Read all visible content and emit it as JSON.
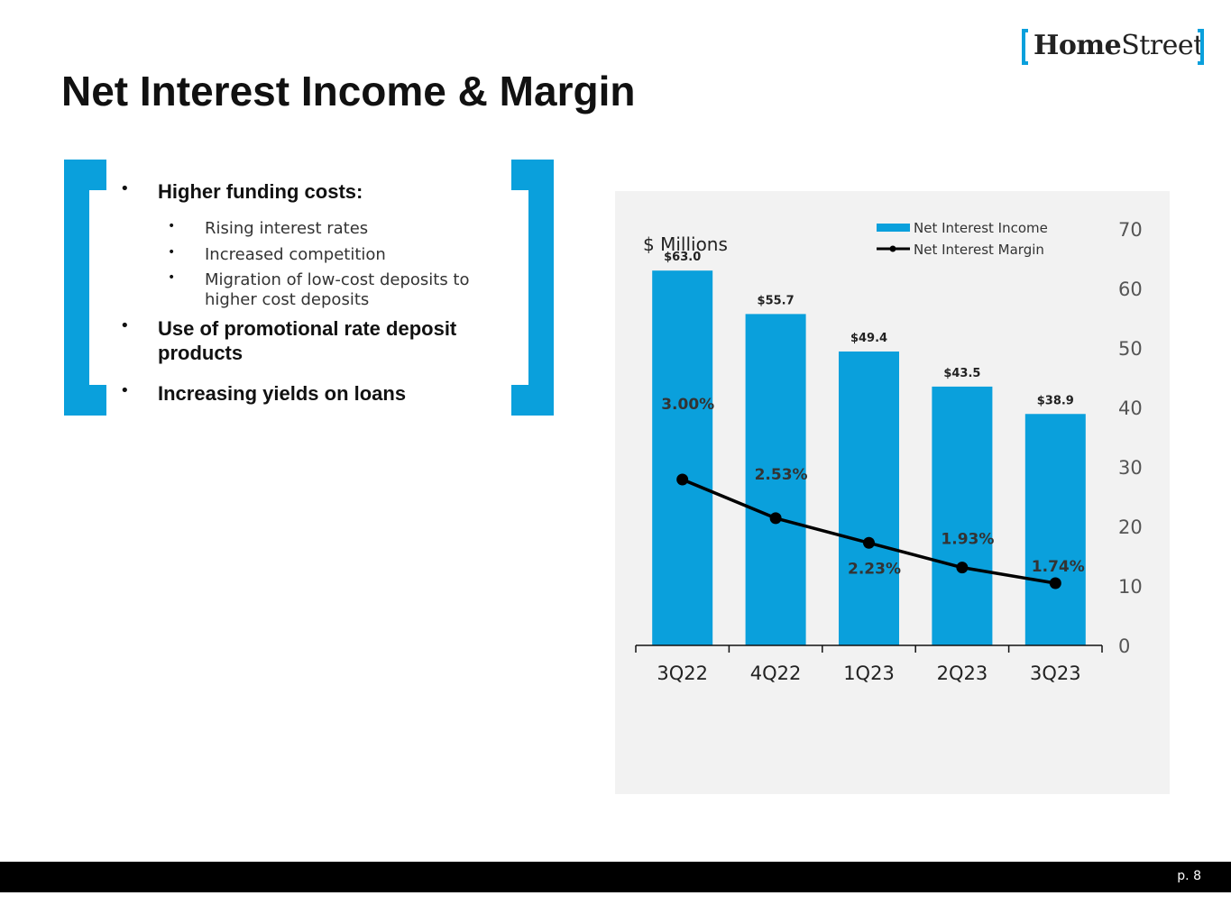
{
  "brand": {
    "logo_bold": "Home",
    "logo_regular": "Street",
    "accent_color": "#0aa0dc"
  },
  "page": {
    "title": "Net Interest Income & Margin",
    "page_number": "p. 8"
  },
  "bullets": [
    {
      "text": "Higher funding costs:",
      "level": 1
    },
    {
      "text": "Rising interest rates",
      "level": 2
    },
    {
      "text": "Increased competition",
      "level": 2
    },
    {
      "text": "Migration of low-cost deposits to higher cost deposits",
      "level": 2
    },
    {
      "text": "Use of promotional rate deposit products",
      "level": 1
    },
    {
      "text": "Increasing yields on loans",
      "level": 1
    }
  ],
  "chart_data": {
    "type": "bar",
    "title": "",
    "ylabel": "$ Millions",
    "categories": [
      "3Q22",
      "4Q22",
      "1Q23",
      "2Q23",
      "3Q23"
    ],
    "ylim": [
      0,
      70
    ],
    "yticks": [
      0,
      10,
      20,
      30,
      40,
      50,
      60,
      70
    ],
    "legend_position": "top-right",
    "series": [
      {
        "name": "Net Interest Income",
        "kind": "bar",
        "color": "#0aa0dc",
        "values": [
          63.0,
          55.7,
          49.4,
          43.5,
          38.9
        ],
        "labels": [
          "$63.0",
          "$55.7",
          "$49.4",
          "$43.5",
          "$38.9"
        ]
      },
      {
        "name": "Net Interest Margin",
        "kind": "line",
        "color": "#000000",
        "values": [
          3.0,
          2.53,
          2.23,
          1.93,
          1.74
        ],
        "labels": [
          "3.00%",
          "2.53%",
          "2.23%",
          "1.93%",
          "1.74%"
        ]
      }
    ]
  }
}
